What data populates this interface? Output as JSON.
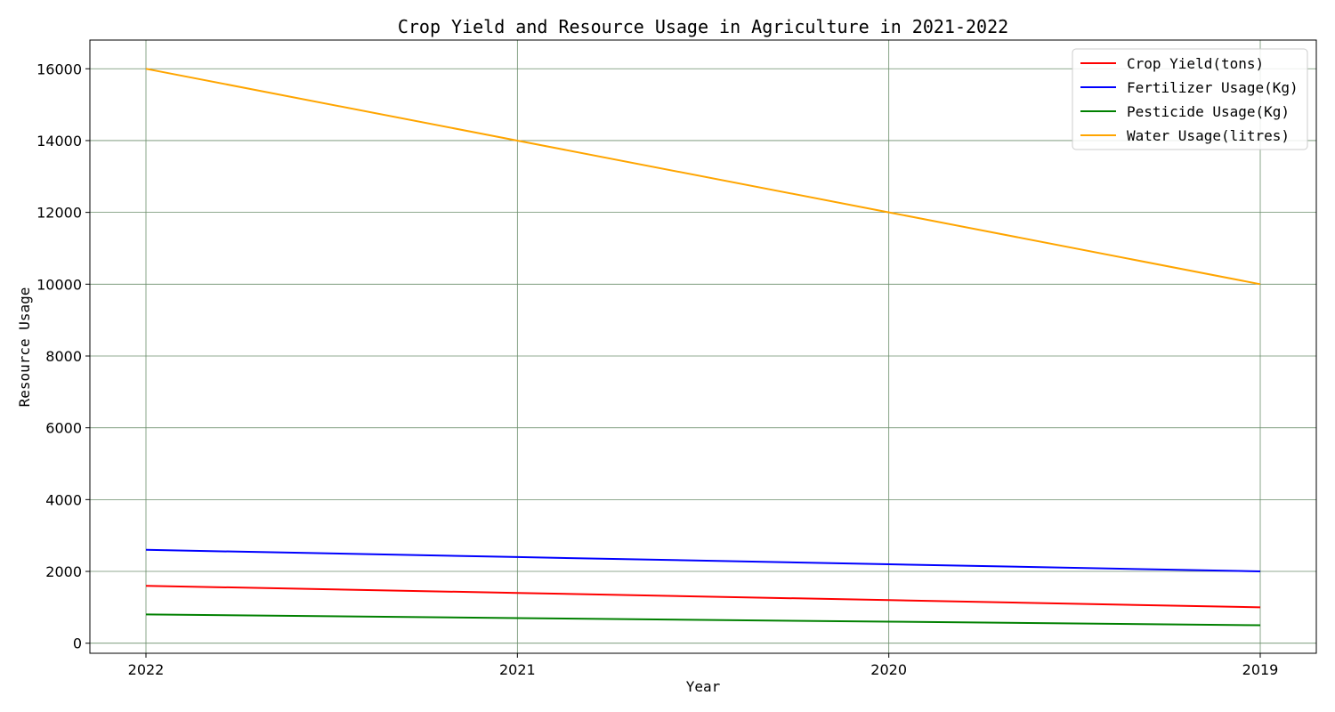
{
  "chart_data": {
    "type": "line",
    "title": "Crop Yield and Resource Usage in Agriculture in 2021-2022",
    "xlabel": "Year",
    "ylabel": "Resource Usage",
    "categories": [
      "2022",
      "2021",
      "2020",
      "2019"
    ],
    "ylim": [
      -280,
      16800
    ],
    "yticks": [
      0,
      2000,
      4000,
      6000,
      8000,
      10000,
      12000,
      14000,
      16000
    ],
    "grid": true,
    "grid_color": "#6b8e6b",
    "legend_position": "top-right",
    "series": [
      {
        "name": "Crop Yield(tons)",
        "color": "#ff0000",
        "values": [
          1600,
          1400,
          1200,
          1000
        ]
      },
      {
        "name": "Fertilizer Usage(Kg)",
        "color": "#0000ff",
        "values": [
          2600,
          2400,
          2200,
          2000
        ]
      },
      {
        "name": "Pesticide Usage(Kg)",
        "color": "#008000",
        "values": [
          800,
          700,
          600,
          500
        ]
      },
      {
        "name": "Water Usage(litres)",
        "color": "#ffa500",
        "values": [
          16000,
          14000,
          12000,
          10000
        ]
      }
    ]
  }
}
